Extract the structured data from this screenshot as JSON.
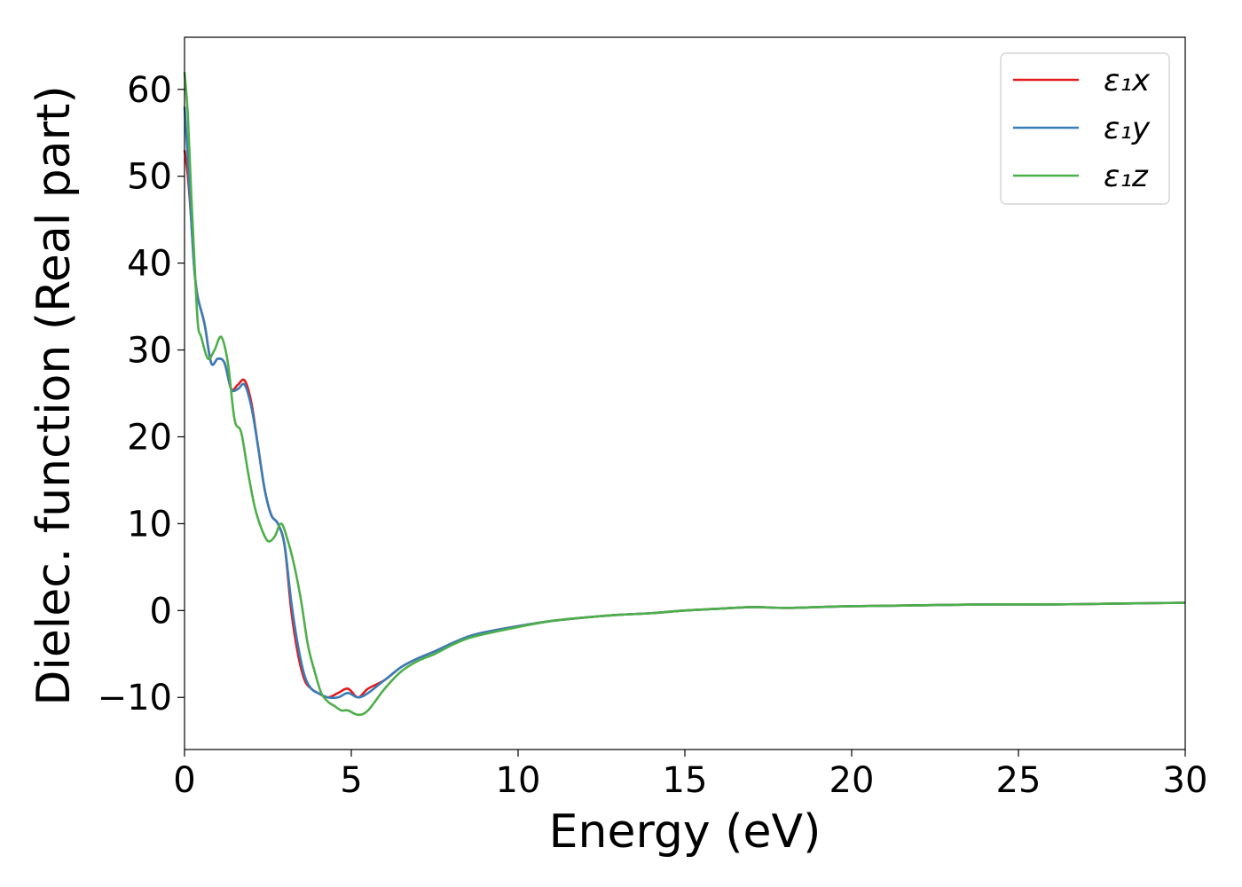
{
  "chart_data": {
    "type": "line",
    "title": "",
    "xlabel": "Energy (eV)",
    "ylabel": "Dielec. function (Real part)",
    "xlim": [
      0,
      30
    ],
    "ylim": [
      -16,
      66
    ],
    "xticks": [
      0,
      5,
      10,
      15,
      20,
      25,
      30
    ],
    "xtick_labels": [
      "0",
      "5",
      "10",
      "15",
      "20",
      "25",
      "30"
    ],
    "yticks": [
      -10,
      0,
      10,
      20,
      30,
      40,
      50,
      60
    ],
    "ytick_labels": [
      "−10",
      "0",
      "10",
      "20",
      "30",
      "40",
      "50",
      "60"
    ],
    "grid": false,
    "legend_position": "top-right",
    "series": [
      {
        "name": "ε₁x",
        "color": "#e41a1c",
        "x": [
          0,
          0.1,
          0.2,
          0.3,
          0.4,
          0.6,
          0.8,
          1.0,
          1.2,
          1.4,
          1.6,
          1.8,
          2.0,
          2.2,
          2.4,
          2.6,
          2.8,
          3.0,
          3.2,
          3.4,
          3.6,
          3.8,
          4.0,
          4.3,
          4.6,
          4.9,
          5.2,
          5.5,
          6.0,
          6.5,
          7.0,
          7.5,
          8.0,
          8.5,
          9.0,
          10,
          11,
          12,
          13,
          14,
          15,
          16,
          17,
          18,
          19,
          20,
          22,
          24,
          26,
          28,
          30
        ],
        "y": [
          53,
          50,
          45,
          39,
          36,
          33,
          28.5,
          29,
          28.5,
          25.5,
          26,
          26.5,
          24,
          19,
          14,
          11,
          10,
          7.5,
          0,
          -5,
          -8,
          -9,
          -9.5,
          -10,
          -9.5,
          -9,
          -10,
          -9,
          -8,
          -6.5,
          -5.5,
          -4.7,
          -3.8,
          -3,
          -2.5,
          -1.8,
          -1.2,
          -0.8,
          -0.5,
          -0.3,
          0,
          0.2,
          0.4,
          0.3,
          0.4,
          0.5,
          0.6,
          0.7,
          0.7,
          0.8,
          0.9
        ]
      },
      {
        "name": "ε₁y",
        "color": "#377eb8",
        "x": [
          0,
          0.1,
          0.2,
          0.3,
          0.4,
          0.6,
          0.8,
          1.0,
          1.2,
          1.4,
          1.6,
          1.8,
          2.0,
          2.2,
          2.4,
          2.6,
          2.8,
          3.0,
          3.2,
          3.4,
          3.6,
          3.8,
          4.0,
          4.3,
          4.6,
          4.9,
          5.2,
          5.5,
          6.0,
          6.5,
          7.0,
          7.5,
          8.0,
          8.5,
          9.0,
          10,
          11,
          12,
          13,
          14,
          15,
          16,
          17,
          18,
          19,
          20,
          22,
          24,
          26,
          28,
          30
        ],
        "y": [
          58,
          52,
          45,
          39,
          36,
          33,
          28.5,
          29,
          28.5,
          25.5,
          25.5,
          26,
          23.5,
          19,
          14,
          11,
          10,
          7.5,
          1,
          -4,
          -7.5,
          -9,
          -9.5,
          -10,
          -10,
          -9.5,
          -10,
          -9.5,
          -8,
          -6.5,
          -5.5,
          -4.7,
          -3.8,
          -3,
          -2.5,
          -1.8,
          -1.2,
          -0.8,
          -0.5,
          -0.3,
          0,
          0.2,
          0.4,
          0.3,
          0.4,
          0.5,
          0.6,
          0.7,
          0.7,
          0.8,
          0.9
        ]
      },
      {
        "name": "ε₁z",
        "color": "#4daf4a",
        "x": [
          0,
          0.1,
          0.2,
          0.3,
          0.4,
          0.5,
          0.7,
          0.9,
          1.1,
          1.3,
          1.5,
          1.7,
          1.9,
          2.1,
          2.3,
          2.5,
          2.7,
          2.9,
          3.1,
          3.3,
          3.5,
          3.7,
          3.9,
          4.1,
          4.3,
          4.5,
          4.7,
          4.9,
          5.2,
          5.5,
          6.0,
          6.5,
          7.0,
          7.5,
          8.0,
          8.5,
          9.0,
          10,
          11,
          12,
          13,
          14,
          15,
          16,
          17,
          18,
          19,
          20,
          22,
          24,
          26,
          28,
          30
        ],
        "y": [
          62,
          57,
          48,
          40,
          33,
          31.5,
          29,
          30,
          31.5,
          28.5,
          22,
          20.5,
          16,
          12,
          9.5,
          8,
          8.5,
          10,
          8,
          5,
          1,
          -4,
          -7,
          -9.5,
          -10.5,
          -11,
          -11.5,
          -11.5,
          -12,
          -11.5,
          -9,
          -7,
          -5.8,
          -5,
          -4,
          -3.2,
          -2.7,
          -1.9,
          -1.2,
          -0.8,
          -0.5,
          -0.3,
          0,
          0.2,
          0.4,
          0.3,
          0.4,
          0.5,
          0.6,
          0.7,
          0.7,
          0.8,
          0.9
        ]
      }
    ]
  }
}
